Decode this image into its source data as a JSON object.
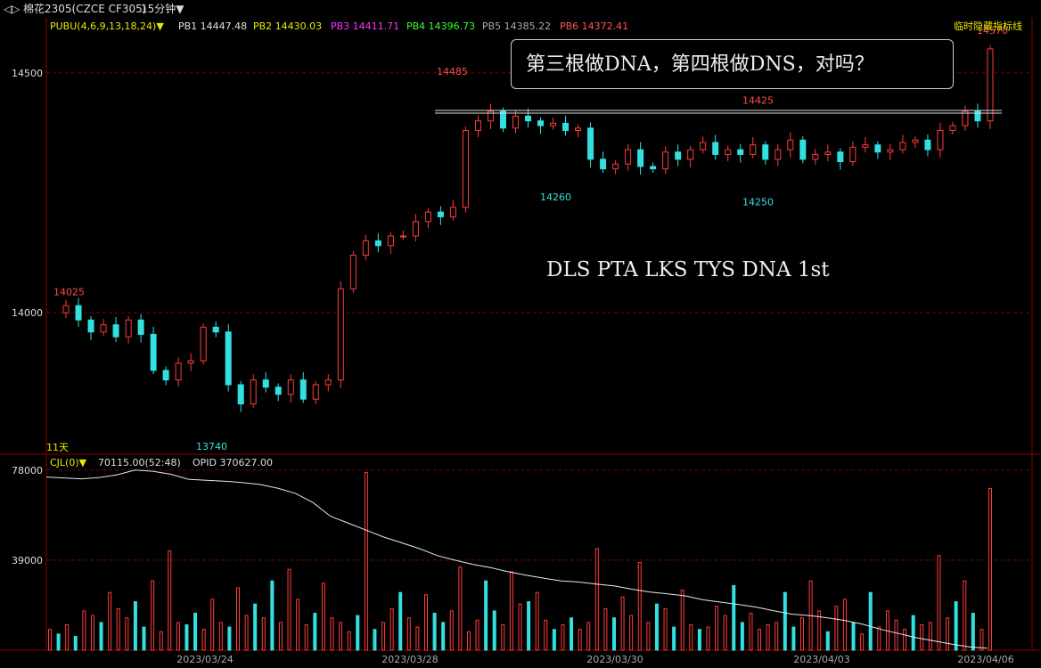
{
  "header": {
    "arrows": "◁▷",
    "symbol": "棉花2305(CZCE CF305)",
    "period": "15分钟▼"
  },
  "legend": {
    "indicator": "PUBU(4,6,9,13,18,24)▼",
    "items": [
      {
        "label": "PB1 14447.48",
        "color": "#e0e0e0"
      },
      {
        "label": "PB2 14430.03",
        "color": "#e8e800"
      },
      {
        "label": "PB3 14411.71",
        "color": "#ff33ff"
      },
      {
        "label": "PB4 14396.73",
        "color": "#33ff33"
      },
      {
        "label": "PB5 14385.22",
        "color": "#aaaaaa"
      },
      {
        "label": "PB6 14372.41",
        "color": "#ff5555"
      }
    ],
    "hide_link": "临时隐藏指标线"
  },
  "annotations": {
    "callout": "第三根做DNA，第四根做DNS，对吗？",
    "note": "DLS PTA LKS TYS DNA 1st",
    "days": "11天"
  },
  "volume_legend": {
    "indicator": "CJL(0)▼",
    "volume": "70115.00(52:48)",
    "opid": "OPID 370627.00"
  },
  "colors": {
    "up": "#ff3b3b",
    "down": "#33e0e0",
    "grid": "#7a0000",
    "axis": "#8b0000"
  },
  "chart_data": [
    {
      "type": "candlestick",
      "title": "",
      "y_ticks": [
        14000,
        14500
      ],
      "ylim": [
        13720,
        14600
      ],
      "x_ticks": [
        "2023/03/24",
        "2023/03/28",
        "2023/03/30",
        "2023/04/03",
        "2023/04/06"
      ],
      "marked_prices": [
        {
          "label": "14025",
          "value": 14025
        },
        {
          "label": "13740",
          "value": 13740
        },
        {
          "label": "14485",
          "value": 14485
        },
        {
          "label": "14260",
          "value": 14260
        },
        {
          "label": "14425",
          "value": 14425
        },
        {
          "label": "14250",
          "value": 14250
        },
        {
          "label": "14570",
          "value": 14570
        }
      ],
      "resistance_line": 14420,
      "path": [
        14000,
        14015,
        13985,
        13960,
        13975,
        13950,
        13985,
        13955,
        13880,
        13860,
        13895,
        13900,
        13970,
        13960,
        13850,
        13810,
        13860,
        13845,
        13830,
        13860,
        13820,
        13850,
        13860,
        14050,
        14120,
        14150,
        14140,
        14160,
        14160,
        14190,
        14210,
        14200,
        14220,
        14380,
        14400,
        14420,
        14385,
        14410,
        14400,
        14390,
        14395,
        14380,
        14385,
        14320,
        14300,
        14310,
        14340,
        14305,
        14300,
        14335,
        14320,
        14340,
        14355,
        14330,
        14340,
        14330,
        14350,
        14320,
        14340,
        14360,
        14320,
        14330,
        14335,
        14315,
        14345,
        14350,
        14335,
        14340,
        14355,
        14360,
        14340,
        14380,
        14390,
        14420,
        14400,
        14550
      ]
    },
    {
      "type": "bar",
      "title": "",
      "y_ticks": [
        39000,
        78000
      ],
      "ylim": [
        0,
        81000
      ],
      "series": [
        {
          "name": "CJL",
          "values": [
            9000,
            7000,
            11000,
            6000,
            17000,
            15000,
            12000,
            25000,
            18000,
            14000,
            21000,
            10000,
            30000,
            8000,
            43000,
            12000,
            11000,
            16000,
            9000,
            22000,
            12000,
            10000,
            27000,
            15000,
            20000,
            14000,
            30000,
            12000,
            35000,
            22000,
            11000,
            16000,
            29000,
            14000,
            12000,
            8000,
            15000,
            77000,
            9000,
            12000,
            18000,
            25000,
            14000,
            10000,
            24000,
            16000,
            12000,
            17000,
            36000,
            8000,
            13000,
            30000,
            17000,
            11000,
            34000,
            20000,
            21000,
            25000,
            13000,
            9000,
            11000,
            14000,
            9000,
            12000,
            44000,
            18000,
            14000,
            23000,
            15000,
            38000,
            12000,
            20000,
            18000,
            10000,
            26000,
            11000,
            9000,
            10000,
            19000,
            15000,
            28000,
            12000,
            16000,
            9000,
            11000,
            12000,
            25000,
            10000,
            14000,
            30000,
            17000,
            8000,
            19000,
            22000,
            12000,
            7000,
            25000,
            10000,
            17000,
            13000,
            9000,
            15000,
            11000,
            12000,
            41000,
            14000,
            21000,
            30000,
            16000,
            9000,
            70000
          ]
        }
      ],
      "oi_line": [
        75000,
        74600,
        74200,
        74800,
        76000,
        78000,
        77500,
        76200,
        74000,
        73600,
        73200,
        72600,
        71800,
        70200,
        68000,
        64000,
        58000,
        55000,
        52000,
        49000,
        46500,
        44000,
        41000,
        39000,
        37200,
        35800,
        34000,
        32500,
        31200,
        30000,
        29500,
        28600,
        27800,
        26400,
        25200,
        24400,
        23500,
        21800,
        20800,
        19800,
        18600,
        17000,
        15600,
        15000,
        14000,
        12800,
        11200,
        9000,
        7200,
        5400,
        4000,
        2600,
        1400,
        900
      ]
    }
  ]
}
